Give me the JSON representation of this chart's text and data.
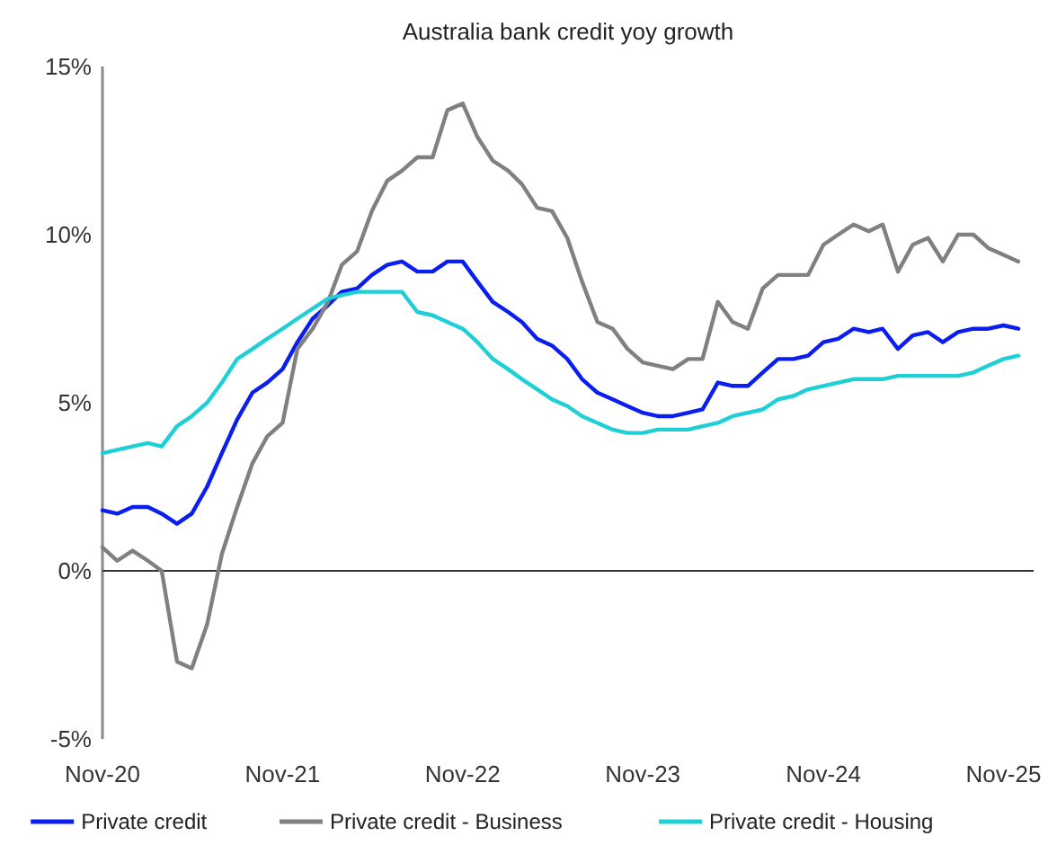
{
  "chart_data": {
    "type": "line",
    "title": "Australia bank credit yoy growth",
    "x": [
      "2020-11",
      "2020-12",
      "2021-01",
      "2021-02",
      "2021-03",
      "2021-04",
      "2021-05",
      "2021-06",
      "2021-07",
      "2021-08",
      "2021-09",
      "2021-10",
      "2021-11",
      "2021-12",
      "2022-01",
      "2022-02",
      "2022-03",
      "2022-04",
      "2022-05",
      "2022-06",
      "2022-07",
      "2022-08",
      "2022-09",
      "2022-10",
      "2022-11",
      "2022-12",
      "2023-01",
      "2023-02",
      "2023-03",
      "2023-04",
      "2023-05",
      "2023-06",
      "2023-07",
      "2023-08",
      "2023-09",
      "2023-10",
      "2023-11",
      "2023-12",
      "2024-01",
      "2024-02",
      "2024-03",
      "2024-04",
      "2024-05",
      "2024-06",
      "2024-07",
      "2024-08",
      "2024-09",
      "2024-10",
      "2024-11",
      "2024-12",
      "2025-01",
      "2025-02",
      "2025-03",
      "2025-04",
      "2025-05",
      "2025-06",
      "2025-07",
      "2025-08",
      "2025-09",
      "2025-10",
      "2025-11",
      "2025-12"
    ],
    "series": [
      {
        "name": "Private credit",
        "color": "#0a1ef0",
        "values": [
          1.8,
          1.7,
          1.9,
          1.9,
          1.7,
          1.4,
          1.7,
          2.5,
          3.5,
          4.5,
          5.3,
          5.6,
          6.0,
          6.8,
          7.5,
          7.9,
          8.3,
          8.4,
          8.8,
          9.1,
          9.2,
          8.9,
          8.9,
          9.2,
          9.2,
          8.6,
          8.0,
          7.7,
          7.4,
          6.9,
          6.7,
          6.3,
          5.7,
          5.3,
          5.1,
          4.9,
          4.7,
          4.6,
          4.6,
          4.7,
          4.8,
          5.6,
          5.5,
          5.5,
          5.9,
          6.3,
          6.3,
          6.4,
          6.8,
          6.9,
          7.2,
          7.1,
          7.2,
          6.6,
          7.0,
          7.1,
          6.8,
          7.1,
          7.2,
          7.2,
          7.3,
          7.2
        ]
      },
      {
        "name": "Private credit - Business",
        "color": "#808080",
        "values": [
          0.7,
          0.3,
          0.6,
          0.3,
          0.0,
          -2.7,
          -2.9,
          -1.6,
          0.5,
          1.9,
          3.2,
          4.0,
          4.4,
          6.6,
          7.2,
          8.0,
          9.1,
          9.5,
          10.7,
          11.6,
          11.9,
          12.3,
          12.3,
          13.7,
          13.9,
          12.9,
          12.2,
          11.9,
          11.5,
          10.8,
          10.7,
          9.9,
          8.6,
          7.4,
          7.2,
          6.6,
          6.2,
          6.1,
          6.0,
          6.3,
          6.3,
          8.0,
          7.4,
          7.2,
          8.4,
          8.8,
          8.8,
          8.8,
          9.7,
          10.0,
          10.3,
          10.1,
          10.3,
          8.9,
          9.7,
          9.9,
          9.2,
          10.0,
          10.0,
          9.6,
          9.4,
          9.2
        ]
      },
      {
        "name": "Private credit - Housing",
        "color": "#1ecfd6",
        "values": [
          3.5,
          3.6,
          3.7,
          3.8,
          3.7,
          4.3,
          4.6,
          5.0,
          5.6,
          6.3,
          6.6,
          6.9,
          7.2,
          7.5,
          7.8,
          8.1,
          8.2,
          8.3,
          8.3,
          8.3,
          8.3,
          7.7,
          7.6,
          7.4,
          7.2,
          6.8,
          6.3,
          6.0,
          5.7,
          5.4,
          5.1,
          4.9,
          4.6,
          4.4,
          4.2,
          4.1,
          4.1,
          4.2,
          4.2,
          4.2,
          4.3,
          4.4,
          4.6,
          4.7,
          4.8,
          5.1,
          5.2,
          5.4,
          5.5,
          5.6,
          5.7,
          5.7,
          5.7,
          5.8,
          5.8,
          5.8,
          5.8,
          5.8,
          5.9,
          6.1,
          6.3,
          6.4
        ]
      }
    ],
    "xlim": [
      "2020-11",
      "2026-01"
    ],
    "xticks": [
      {
        "value": "2020-11",
        "label": "Nov-20"
      },
      {
        "value": "2021-11",
        "label": "Nov-21"
      },
      {
        "value": "2022-11",
        "label": "Nov-22"
      },
      {
        "value": "2023-11",
        "label": "Nov-23"
      },
      {
        "value": "2024-11",
        "label": "Nov-24"
      },
      {
        "value": "2025-11",
        "label": "Nov-25"
      }
    ],
    "ylim": [
      -5,
      15
    ],
    "yticks": [
      {
        "value": -5,
        "label": "-5%"
      },
      {
        "value": 0,
        "label": "0%"
      },
      {
        "value": 5,
        "label": "5%"
      },
      {
        "value": 10,
        "label": "10%"
      },
      {
        "value": 15,
        "label": "15%"
      }
    ],
    "ref_lines": [
      {
        "axis": "y",
        "value": 0,
        "color": "#333333"
      }
    ],
    "legend": "bottom",
    "marker": "none",
    "line_style": "solid"
  }
}
